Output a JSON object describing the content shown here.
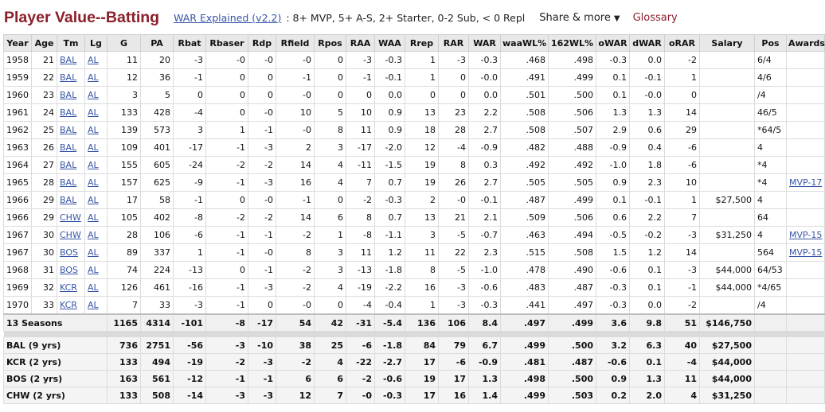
{
  "header": {
    "title": "Player Value--Batting",
    "war_link": "WAR Explained (v2.2)",
    "war_legend": ": 8+ MVP, 5+ A-S, 2+ Starter, 0-2 Sub, < 0 Repl",
    "share": "Share & more",
    "glossary": "Glossary"
  },
  "columns": [
    "Year",
    "Age",
    "Tm",
    "Lg",
    "G",
    "PA",
    "Rbat",
    "Rbaser",
    "Rdp",
    "Rfield",
    "Rpos",
    "RAA",
    "WAA",
    "Rrep",
    "RAR",
    "WAR",
    "waaWL%",
    "162WL%",
    "oWAR",
    "dWAR",
    "oRAR",
    "Salary",
    "Pos",
    "Awards"
  ],
  "rows": [
    {
      "year": "1958",
      "age": "21",
      "tm": "BAL",
      "lg": "AL",
      "g": "11",
      "pa": "20",
      "rbat": "-3",
      "rbaser": "-0",
      "rdp": "-0",
      "rfield": "-0",
      "rpos": "0",
      "raa": "-3",
      "waa": "-0.3",
      "rrep": "1",
      "rar": "-3",
      "war": "-0.3",
      "waawl": ".468",
      "wl162": ".498",
      "owar": "-0.3",
      "dwar": "0.0",
      "orar": "-2",
      "salary": "",
      "pos": "6/4",
      "awards": ""
    },
    {
      "year": "1959",
      "age": "22",
      "tm": "BAL",
      "lg": "AL",
      "g": "12",
      "pa": "36",
      "rbat": "-1",
      "rbaser": "0",
      "rdp": "0",
      "rfield": "-1",
      "rpos": "0",
      "raa": "-1",
      "waa": "-0.1",
      "rrep": "1",
      "rar": "0",
      "war": "-0.0",
      "waawl": ".491",
      "wl162": ".499",
      "owar": "0.1",
      "dwar": "-0.1",
      "orar": "1",
      "salary": "",
      "pos": "4/6",
      "awards": ""
    },
    {
      "year": "1960",
      "age": "23",
      "tm": "BAL",
      "lg": "AL",
      "g": "3",
      "pa": "5",
      "rbat": "0",
      "rbaser": "0",
      "rdp": "0",
      "rfield": "-0",
      "rpos": "0",
      "raa": "0",
      "waa": "0.0",
      "rrep": "0",
      "rar": "0",
      "war": "0.0",
      "waawl": ".501",
      "wl162": ".500",
      "owar": "0.1",
      "dwar": "-0.0",
      "orar": "0",
      "salary": "",
      "pos": "/4",
      "awards": ""
    },
    {
      "year": "1961",
      "age": "24",
      "tm": "BAL",
      "lg": "AL",
      "g": "133",
      "pa": "428",
      "rbat": "-4",
      "rbaser": "0",
      "rdp": "-0",
      "rfield": "10",
      "rpos": "5",
      "raa": "10",
      "waa": "0.9",
      "rrep": "13",
      "rar": "23",
      "war": "2.2",
      "waawl": ".508",
      "wl162": ".506",
      "owar": "1.3",
      "dwar": "1.3",
      "orar": "14",
      "salary": "",
      "pos": "46/5",
      "awards": ""
    },
    {
      "year": "1962",
      "age": "25",
      "tm": "BAL",
      "lg": "AL",
      "g": "139",
      "pa": "573",
      "rbat": "3",
      "rbaser": "1",
      "rdp": "-1",
      "rfield": "-0",
      "rpos": "8",
      "raa": "11",
      "waa": "0.9",
      "rrep": "18",
      "rar": "28",
      "war": "2.7",
      "waawl": ".508",
      "wl162": ".507",
      "owar": "2.9",
      "dwar": "0.6",
      "orar": "29",
      "salary": "",
      "pos": "*64/5",
      "awards": ""
    },
    {
      "year": "1963",
      "age": "26",
      "tm": "BAL",
      "lg": "AL",
      "g": "109",
      "pa": "401",
      "rbat": "-17",
      "rbaser": "-1",
      "rdp": "-3",
      "rfield": "2",
      "rpos": "3",
      "raa": "-17",
      "waa": "-2.0",
      "rrep": "12",
      "rar": "-4",
      "war": "-0.9",
      "waawl": ".482",
      "wl162": ".488",
      "owar": "-0.9",
      "dwar": "0.4",
      "orar": "-6",
      "salary": "",
      "pos": "4",
      "awards": ""
    },
    {
      "year": "1964",
      "age": "27",
      "tm": "BAL",
      "lg": "AL",
      "g": "155",
      "pa": "605",
      "rbat": "-24",
      "rbaser": "-2",
      "rdp": "-2",
      "rfield": "14",
      "rpos": "4",
      "raa": "-11",
      "waa": "-1.5",
      "rrep": "19",
      "rar": "8",
      "war": "0.3",
      "waawl": ".492",
      "wl162": ".492",
      "owar": "-1.0",
      "dwar": "1.8",
      "orar": "-6",
      "salary": "",
      "pos": "*4",
      "awards": ""
    },
    {
      "year": "1965",
      "age": "28",
      "tm": "BAL",
      "lg": "AL",
      "g": "157",
      "pa": "625",
      "rbat": "-9",
      "rbaser": "-1",
      "rdp": "-3",
      "rfield": "16",
      "rpos": "4",
      "raa": "7",
      "waa": "0.7",
      "rrep": "19",
      "rar": "26",
      "war": "2.7",
      "waawl": ".505",
      "wl162": ".505",
      "owar": "0.9",
      "dwar": "2.3",
      "orar": "10",
      "salary": "",
      "pos": "*4",
      "awards": "MVP-17"
    },
    {
      "year": "1966",
      "age": "29",
      "tm": "BAL",
      "lg": "AL",
      "g": "17",
      "pa": "58",
      "rbat": "-1",
      "rbaser": "0",
      "rdp": "-0",
      "rfield": "-1",
      "rpos": "0",
      "raa": "-2",
      "waa": "-0.3",
      "rrep": "2",
      "rar": "-0",
      "war": "-0.1",
      "waawl": ".487",
      "wl162": ".499",
      "owar": "0.1",
      "dwar": "-0.1",
      "orar": "1",
      "salary": "$27,500",
      "pos": "4",
      "awards": ""
    },
    {
      "year": "1966",
      "age": "29",
      "tm": "CHW",
      "lg": "AL",
      "g": "105",
      "pa": "402",
      "rbat": "-8",
      "rbaser": "-2",
      "rdp": "-2",
      "rfield": "14",
      "rpos": "6",
      "raa": "8",
      "waa": "0.7",
      "rrep": "13",
      "rar": "21",
      "war": "2.1",
      "waawl": ".509",
      "wl162": ".506",
      "owar": "0.6",
      "dwar": "2.2",
      "orar": "7",
      "salary": "",
      "pos": "64",
      "awards": ""
    },
    {
      "year": "1967",
      "age": "30",
      "tm": "CHW",
      "lg": "AL",
      "g": "28",
      "pa": "106",
      "rbat": "-6",
      "rbaser": "-1",
      "rdp": "-1",
      "rfield": "-2",
      "rpos": "1",
      "raa": "-8",
      "waa": "-1.1",
      "rrep": "3",
      "rar": "-5",
      "war": "-0.7",
      "waawl": ".463",
      "wl162": ".494",
      "owar": "-0.5",
      "dwar": "-0.2",
      "orar": "-3",
      "salary": "$31,250",
      "pos": "4",
      "awards": "MVP-15"
    },
    {
      "year": "1967",
      "age": "30",
      "tm": "BOS",
      "lg": "AL",
      "g": "89",
      "pa": "337",
      "rbat": "1",
      "rbaser": "-1",
      "rdp": "-0",
      "rfield": "8",
      "rpos": "3",
      "raa": "11",
      "waa": "1.2",
      "rrep": "11",
      "rar": "22",
      "war": "2.3",
      "waawl": ".515",
      "wl162": ".508",
      "owar": "1.5",
      "dwar": "1.2",
      "orar": "14",
      "salary": "",
      "pos": "564",
      "awards": "MVP-15"
    },
    {
      "year": "1968",
      "age": "31",
      "tm": "BOS",
      "lg": "AL",
      "g": "74",
      "pa": "224",
      "rbat": "-13",
      "rbaser": "0",
      "rdp": "-1",
      "rfield": "-2",
      "rpos": "3",
      "raa": "-13",
      "waa": "-1.8",
      "rrep": "8",
      "rar": "-5",
      "war": "-1.0",
      "waawl": ".478",
      "wl162": ".490",
      "owar": "-0.6",
      "dwar": "0.1",
      "orar": "-3",
      "salary": "$44,000",
      "pos": "64/53",
      "awards": ""
    },
    {
      "year": "1969",
      "age": "32",
      "tm": "KCR",
      "lg": "AL",
      "g": "126",
      "pa": "461",
      "rbat": "-16",
      "rbaser": "-1",
      "rdp": "-3",
      "rfield": "-2",
      "rpos": "4",
      "raa": "-19",
      "waa": "-2.2",
      "rrep": "16",
      "rar": "-3",
      "war": "-0.6",
      "waawl": ".483",
      "wl162": ".487",
      "owar": "-0.3",
      "dwar": "0.1",
      "orar": "-1",
      "salary": "$44,000",
      "pos": "*4/65",
      "awards": ""
    },
    {
      "year": "1970",
      "age": "33",
      "tm": "KCR",
      "lg": "AL",
      "g": "7",
      "pa": "33",
      "rbat": "-3",
      "rbaser": "-1",
      "rdp": "0",
      "rfield": "-0",
      "rpos": "0",
      "raa": "-4",
      "waa": "-0.4",
      "rrep": "1",
      "rar": "-3",
      "war": "-0.3",
      "waawl": ".441",
      "wl162": ".497",
      "owar": "-0.3",
      "dwar": "0.0",
      "orar": "-2",
      "salary": "",
      "pos": "/4",
      "awards": ""
    }
  ],
  "total": {
    "label": "13 Seasons",
    "g": "1165",
    "pa": "4314",
    "rbat": "-101",
    "rbaser": "-8",
    "rdp": "-17",
    "rfield": "54",
    "rpos": "42",
    "raa": "-31",
    "waa": "-5.4",
    "rrep": "136",
    "rar": "106",
    "war": "8.4",
    "waawl": ".497",
    "wl162": ".499",
    "owar": "3.6",
    "dwar": "9.8",
    "orar": "51",
    "salary": "$146,750"
  },
  "teams": [
    {
      "label": "BAL (9 yrs)",
      "g": "736",
      "pa": "2751",
      "rbat": "-56",
      "rbaser": "-3",
      "rdp": "-10",
      "rfield": "38",
      "rpos": "25",
      "raa": "-6",
      "waa": "-1.8",
      "rrep": "84",
      "rar": "79",
      "war": "6.7",
      "waawl": ".499",
      "wl162": ".500",
      "owar": "3.2",
      "dwar": "6.3",
      "orar": "40",
      "salary": "$27,500"
    },
    {
      "label": "KCR (2 yrs)",
      "g": "133",
      "pa": "494",
      "rbat": "-19",
      "rbaser": "-2",
      "rdp": "-3",
      "rfield": "-2",
      "rpos": "4",
      "raa": "-22",
      "waa": "-2.7",
      "rrep": "17",
      "rar": "-6",
      "war": "-0.9",
      "waawl": ".481",
      "wl162": ".487",
      "owar": "-0.6",
      "dwar": "0.1",
      "orar": "-4",
      "salary": "$44,000"
    },
    {
      "label": "BOS (2 yrs)",
      "g": "163",
      "pa": "561",
      "rbat": "-12",
      "rbaser": "-1",
      "rdp": "-1",
      "rfield": "6",
      "rpos": "6",
      "raa": "-2",
      "waa": "-0.6",
      "rrep": "19",
      "rar": "17",
      "war": "1.3",
      "waawl": ".498",
      "wl162": ".500",
      "owar": "0.9",
      "dwar": "1.3",
      "orar": "11",
      "salary": "$44,000"
    },
    {
      "label": "CHW (2 yrs)",
      "g": "133",
      "pa": "508",
      "rbat": "-14",
      "rbaser": "-3",
      "rdp": "-3",
      "rfield": "12",
      "rpos": "7",
      "raa": "-0",
      "waa": "-0.3",
      "rrep": "17",
      "rar": "16",
      "war": "1.4",
      "waawl": ".499",
      "wl162": ".503",
      "owar": "0.2",
      "dwar": "2.0",
      "orar": "4",
      "salary": "$31,250"
    }
  ]
}
